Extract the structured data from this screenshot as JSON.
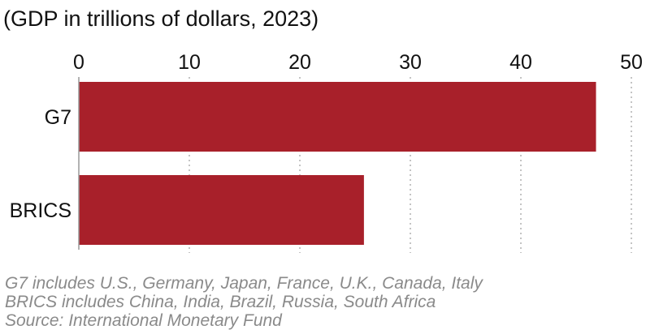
{
  "chart_data": {
    "type": "bar",
    "orientation": "horizontal",
    "title": "",
    "subtitle": "(GDP in trillions of dollars, 2023)",
    "categories": [
      "G7",
      "BRICS"
    ],
    "values": [
      46.8,
      25.8
    ],
    "xlim": [
      0,
      50
    ],
    "xticks": [
      0,
      10,
      20,
      30,
      40,
      50
    ],
    "grid": true,
    "bar_color": "#a8202a"
  },
  "notes": [
    "G7 includes U.S., Germany, Japan, France, U.K., Canada, Italy",
    "BRICS includes China, India, Brazil, Russia, South Africa",
    "Source: International Monetary Fund"
  ]
}
